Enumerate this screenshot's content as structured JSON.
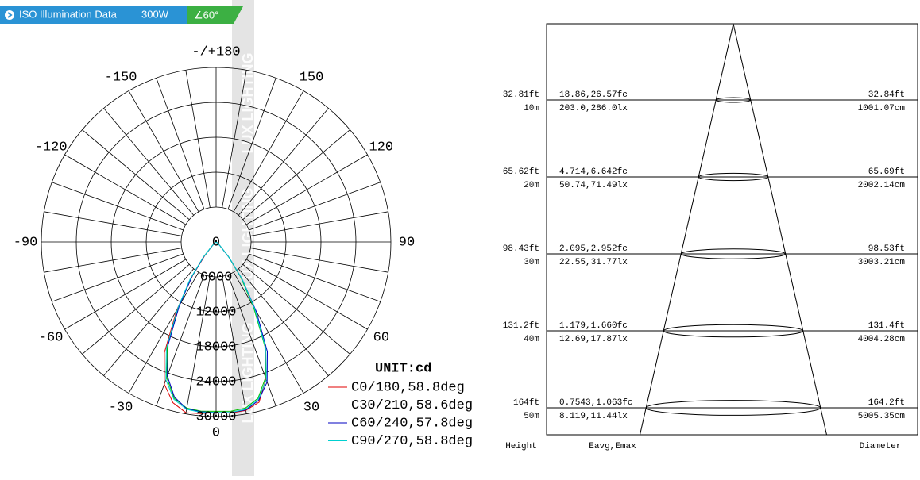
{
  "header": {
    "title": "ISO Illumination Data",
    "power": "300W",
    "beam_angle": "∠60°"
  },
  "watermark": "LUX LIGHTING",
  "chart_data": {
    "type": "polar",
    "unit_label": "UNIT:cd",
    "x": [
      -60,
      -55,
      -50,
      -45,
      -40,
      -35,
      -30,
      -25,
      -20,
      -15,
      -10,
      -5,
      0,
      5,
      10,
      15,
      20,
      25,
      30,
      35,
      40,
      45,
      50,
      55,
      60
    ],
    "rlim": [
      0,
      30000
    ],
    "rticks": [
      0,
      6000,
      12000,
      18000,
      24000,
      30000
    ],
    "angle_ticks": [
      {
        "value": 180,
        "label": "-/+180"
      },
      -150,
      150,
      -120,
      120,
      -90,
      90,
      -60,
      60,
      -30,
      30,
      0
    ],
    "grid": true,
    "series": [
      {
        "name": "C0/180,58.8deg",
        "color": "#e00000",
        "values": [
          0,
          100,
          300,
          900,
          3000,
          7000,
          13500,
          21000,
          26000,
          28600,
          29800,
          29600,
          29300,
          29500,
          29400,
          28500,
          25000,
          20000,
          13000,
          7500,
          3400,
          1000,
          300,
          100,
          0
        ]
      },
      {
        "name": "C30/210,58.6deg",
        "color": "#00c000",
        "values": [
          0,
          100,
          300,
          1000,
          3300,
          7400,
          12800,
          19800,
          24800,
          27800,
          29000,
          29200,
          29100,
          29200,
          29000,
          27800,
          24800,
          19800,
          12800,
          7400,
          3300,
          1000,
          300,
          100,
          0
        ]
      },
      {
        "name": "C60/240,57.8deg",
        "color": "#0000c0",
        "values": [
          0,
          100,
          300,
          1000,
          3200,
          7200,
          12600,
          19500,
          24500,
          27600,
          29100,
          29300,
          29300,
          29400,
          29300,
          28200,
          25600,
          20800,
          13800,
          7800,
          3500,
          1000,
          300,
          100,
          0
        ]
      },
      {
        "name": "C90/270,58.8deg",
        "color": "#00d0d0",
        "values": [
          0,
          100,
          300,
          1100,
          3500,
          7800,
          13200,
          20200,
          25200,
          28000,
          29200,
          29400,
          29300,
          29400,
          29200,
          28000,
          25200,
          20200,
          13200,
          7800,
          3500,
          1100,
          300,
          100,
          0
        ]
      }
    ]
  },
  "beam_diagram": {
    "column_headers": [
      "Height",
      "Eavg,Emax",
      "Diameter"
    ],
    "levels": [
      {
        "height_ft": "32.81ft",
        "height_m": "10m",
        "fc": "18.86,26.57fc",
        "lx": "203.0,286.0lx",
        "diameter_ft": "32.84ft",
        "diameter_cm": "1001.07cm"
      },
      {
        "height_ft": "65.62ft",
        "height_m": "20m",
        "fc": "4.714,6.642fc",
        "lx": "50.74,71.49lx",
        "diameter_ft": "65.69ft",
        "diameter_cm": "2002.14cm"
      },
      {
        "height_ft": "98.43ft",
        "height_m": "30m",
        "fc": "2.095,2.952fc",
        "lx": "22.55,31.77lx",
        "diameter_ft": "98.53ft",
        "diameter_cm": "3003.21cm"
      },
      {
        "height_ft": "131.2ft",
        "height_m": "40m",
        "fc": "1.179,1.660fc",
        "lx": "12.69,17.87lx",
        "diameter_ft": "131.4ft",
        "diameter_cm": "4004.28cm"
      },
      {
        "height_ft": "164ft",
        "height_m": "50m",
        "fc": "0.7543,1.063fc",
        "lx": "8.119,11.44lx",
        "diameter_ft": "164.2ft",
        "diameter_cm": "5005.35cm"
      }
    ]
  }
}
